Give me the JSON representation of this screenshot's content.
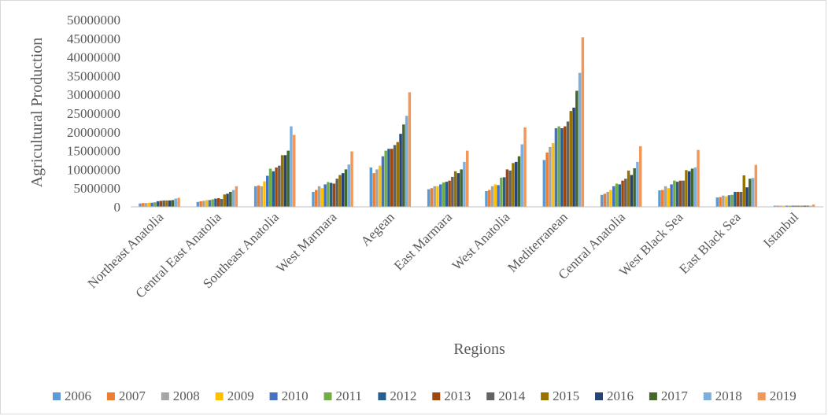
{
  "chart_data": {
    "type": "bar",
    "xlabel": "Regions",
    "ylabel": "Agricultural Production",
    "ylim": [
      0,
      50000000
    ],
    "ytick_step": 5000000,
    "grid": false,
    "legend_placement": "bottom",
    "categories": [
      "Northeast Anatolia",
      "Central East Anatolia",
      "Southeast Anatolia",
      "West Marmara",
      "Aegean",
      "East Marmara",
      "West Anatolia",
      "Mediterranean",
      "Central Anatolia",
      "West Black Sea",
      "East Black Sea",
      "Istanbul"
    ],
    "series": [
      {
        "name": "2006",
        "color": "#5B9BD5",
        "values": [
          900000,
          1300000,
          5500000,
          4000000,
          10500000,
          4700000,
          4200000,
          12500000,
          3200000,
          4400000,
          2500000,
          300000
        ]
      },
      {
        "name": "2007",
        "color": "#ED7D31",
        "values": [
          1000000,
          1500000,
          5700000,
          4500000,
          9000000,
          5000000,
          4500000,
          14500000,
          3500000,
          4500000,
          2600000,
          300000
        ]
      },
      {
        "name": "2008",
        "color": "#A5A5A5",
        "values": [
          1000000,
          1600000,
          5500000,
          5500000,
          10000000,
          5500000,
          5500000,
          16000000,
          4000000,
          5500000,
          3000000,
          300000
        ]
      },
      {
        "name": "2009",
        "color": "#FFC000",
        "values": [
          1100000,
          1800000,
          6800000,
          5000000,
          11000000,
          5500000,
          6000000,
          17000000,
          4500000,
          5000000,
          2800000,
          300000
        ]
      },
      {
        "name": "2010",
        "color": "#4472C4",
        "values": [
          1100000,
          1800000,
          8300000,
          6000000,
          13500000,
          6000000,
          5800000,
          21000000,
          5500000,
          6000000,
          3100000,
          300000
        ]
      },
      {
        "name": "2011",
        "color": "#70AD47",
        "values": [
          1200000,
          2000000,
          10200000,
          6600000,
          15000000,
          6500000,
          7800000,
          21500000,
          6200000,
          7000000,
          3200000,
          300000
        ]
      },
      {
        "name": "2012",
        "color": "#255E91",
        "values": [
          1500000,
          2200000,
          9500000,
          6400000,
          15500000,
          6700000,
          7900000,
          21000000,
          6000000,
          6700000,
          4000000,
          300000
        ]
      },
      {
        "name": "2013",
        "color": "#9E480E",
        "values": [
          1600000,
          2300000,
          10500000,
          6200000,
          15500000,
          7000000,
          10000000,
          21500000,
          7000000,
          7000000,
          4000000,
          300000
        ]
      },
      {
        "name": "2014",
        "color": "#636363",
        "values": [
          1700000,
          2100000,
          11000000,
          7500000,
          16500000,
          8000000,
          9700000,
          22800000,
          7500000,
          7000000,
          4000000,
          300000
        ]
      },
      {
        "name": "2015",
        "color": "#997300",
        "values": [
          1700000,
          3300000,
          13800000,
          8500000,
          17300000,
          9500000,
          11700000,
          25600000,
          9700000,
          9800000,
          8400000,
          300000
        ]
      },
      {
        "name": "2016",
        "color": "#264478",
        "values": [
          1700000,
          3500000,
          13800000,
          9000000,
          19500000,
          9000000,
          12000000,
          26500000,
          8500000,
          9500000,
          5200000,
          300000
        ]
      },
      {
        "name": "2017",
        "color": "#43682B",
        "values": [
          1800000,
          4000000,
          15000000,
          10000000,
          22000000,
          10000000,
          13500000,
          31000000,
          10300000,
          10200000,
          7500000,
          300000
        ]
      },
      {
        "name": "2018",
        "color": "#7CAFDD",
        "values": [
          2200000,
          4500000,
          21500000,
          11300000,
          24300000,
          12000000,
          16700000,
          35800000,
          12000000,
          10500000,
          7700000,
          300000
        ]
      },
      {
        "name": "2019",
        "color": "#F1975A",
        "values": [
          2400000,
          5500000,
          19200000,
          14800000,
          30600000,
          15000000,
          21200000,
          45300000,
          16200000,
          15200000,
          11200000,
          600000
        ]
      }
    ]
  }
}
